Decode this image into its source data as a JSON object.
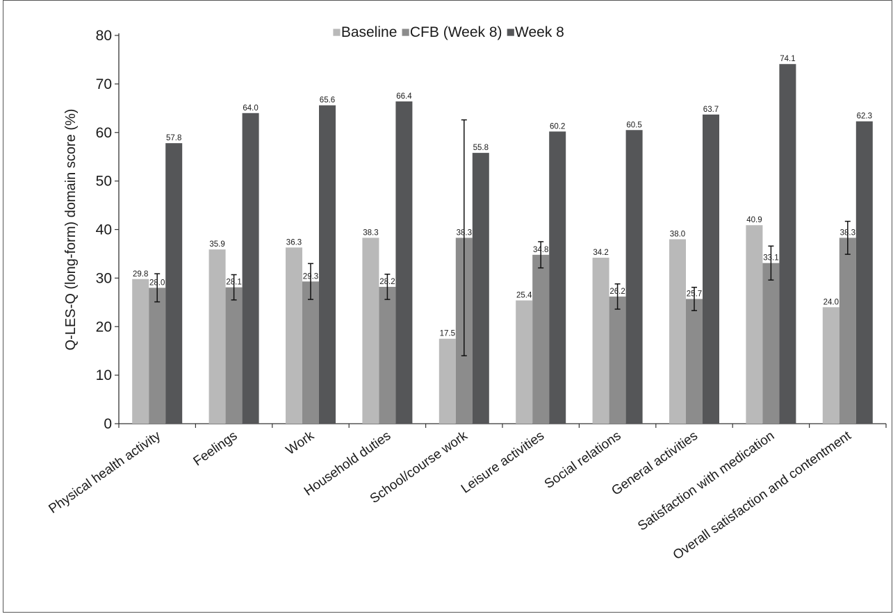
{
  "chart_data": {
    "type": "bar",
    "ylabel": "Q-LES-Q (long-form) domain score (%)",
    "xlabel": "",
    "ylim": [
      0,
      80
    ],
    "yticks": [
      0,
      10,
      20,
      30,
      40,
      50,
      60,
      70,
      80
    ],
    "grid": false,
    "legend_position": "top-center",
    "categories": [
      "Physical health activity",
      "Feelings",
      "Work",
      "Household duties",
      "School/course work",
      "Leisure activities",
      "Social relations",
      "General activities",
      "Satisfaction with medication",
      "Overall satisfaction and contentment"
    ],
    "series": [
      {
        "name": "Baseline",
        "color": "#b9b9b9",
        "values": [
          29.8,
          35.9,
          36.3,
          38.3,
          17.5,
          25.4,
          34.2,
          38.0,
          40.9,
          24.0
        ],
        "labels": [
          "29.8",
          "35.9",
          "36.3",
          "38.3",
          "17.5",
          "25.4",
          "34.2",
          "38.0",
          "40.9",
          "24.0"
        ]
      },
      {
        "name": "CFB (Week 8)",
        "color": "#8c8c8c",
        "values": [
          28.0,
          28.1,
          29.3,
          28.2,
          38.3,
          34.8,
          26.2,
          25.7,
          33.1,
          38.3
        ],
        "labels": [
          "28.0",
          "28.1",
          "29.3",
          "28.2",
          "38.3",
          "34.8",
          "26.2",
          "25.7",
          "33.1",
          "38.3"
        ],
        "error_low": [
          25.1,
          25.5,
          25.6,
          25.6,
          14.0,
          32.1,
          23.6,
          23.3,
          29.6,
          34.9
        ],
        "error_high": [
          30.9,
          30.7,
          33.0,
          30.8,
          62.6,
          37.5,
          28.8,
          28.1,
          36.6,
          41.7
        ]
      },
      {
        "name": "Week 8",
        "color": "#555658",
        "values": [
          57.8,
          64.0,
          65.6,
          66.4,
          55.8,
          60.2,
          60.5,
          63.7,
          74.1,
          62.3
        ],
        "labels": [
          "57.8",
          "64.0",
          "65.6",
          "66.4",
          "55.8",
          "60.2",
          "60.5",
          "63.7",
          "74.1",
          "62.3"
        ]
      }
    ]
  },
  "legend_marker": "■"
}
